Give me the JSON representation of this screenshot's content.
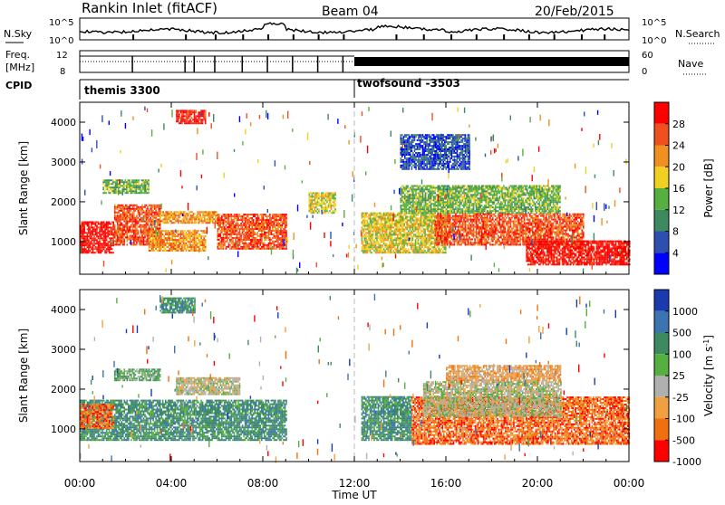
{
  "header": {
    "station": "Rankin Inlet (fitACF)",
    "beam": "Beam 04",
    "date": "20/Feb/2015"
  },
  "nsky_panel": {
    "left_label": "N.Sky",
    "right_label": "N.Search",
    "left_ticks": [
      "10^5",
      "10^0"
    ],
    "right_ticks": [
      "10^5",
      "10^0"
    ]
  },
  "freq_panel": {
    "left_label_1": "Freq.",
    "left_label_2": "[MHz]",
    "right_label": "Nave",
    "left_ticks": [
      "12",
      "8"
    ],
    "right_ticks": [
      "60",
      "0"
    ]
  },
  "cpid_panel": {
    "label": "CPID",
    "mode_1": "themis 3300",
    "mode_2": "twofsound -3503",
    "switch_time_hours": 12.0
  },
  "x_axis": {
    "title": "Time UT",
    "range_hours": [
      0,
      24
    ],
    "ticks": [
      {
        "hour": 0,
        "label": "00:00"
      },
      {
        "hour": 4,
        "label": "04:00"
      },
      {
        "hour": 8,
        "label": "08:00"
      },
      {
        "hour": 12,
        "label": "12:00"
      },
      {
        "hour": 16,
        "label": "16:00"
      },
      {
        "hour": 20,
        "label": "20:00"
      },
      {
        "hour": 24,
        "label": "00:00"
      }
    ]
  },
  "power_panel": {
    "ylabel": "Slant Range [km]",
    "yrange_km": [
      180,
      4500
    ],
    "yticks": [
      1000,
      2000,
      3000,
      4000
    ],
    "colorbar_label": "Power [dB]",
    "colorbar_ticks": [
      "4",
      "8",
      "12",
      "16",
      "20",
      "24",
      "28"
    ],
    "colors": [
      "#0000ff",
      "#2d50b0",
      "#3d8a60",
      "#55b040",
      "#f0d020",
      "#f09020",
      "#f05020",
      "#ff0000"
    ]
  },
  "velocity_panel": {
    "ylabel": "Slant Range [km]",
    "yrange_km": [
      180,
      4500
    ],
    "yticks": [
      1000,
      2000,
      3000,
      4000
    ],
    "colorbar_label": "Velocity [m s^-1]",
    "colorbar_ticks": [
      "1000",
      "500",
      "100",
      "25",
      "-25",
      "-100",
      "-500",
      "-1000"
    ],
    "colors": [
      "#1a3ab0",
      "#3b74b0",
      "#3d8a60",
      "#55b040",
      "#b0b0b0",
      "#f0a040",
      "#f07010",
      "#ff0000"
    ]
  },
  "chart_data": {
    "type": "heatmap",
    "title": "Rankin Inlet (fitACF)",
    "xlabel": "Time UT",
    "ylabel": "Slant Range [km]",
    "xlim_hours": [
      0,
      24
    ],
    "ylim_km": [
      180,
      4500
    ],
    "power_regions": [
      {
        "t0": 0.0,
        "t1": 1.5,
        "r0": 700,
        "r1": 1500,
        "level": 7
      },
      {
        "t0": 1.5,
        "t1": 3.5,
        "r0": 900,
        "r1": 1900,
        "level": 6
      },
      {
        "t0": 3.0,
        "t1": 5.5,
        "r0": 750,
        "r1": 1250,
        "level": 5
      },
      {
        "t0": 3.5,
        "t1": 6.0,
        "r0": 1450,
        "r1": 1750,
        "level": 5
      },
      {
        "t0": 4.2,
        "t1": 5.5,
        "r0": 3950,
        "r1": 4300,
        "level": 7
      },
      {
        "t0": 6.0,
        "t1": 9.0,
        "r0": 800,
        "r1": 1700,
        "level": 6
      },
      {
        "t0": 1.0,
        "t1": 3.0,
        "r0": 2200,
        "r1": 2550,
        "level": 3
      },
      {
        "t0": 10.0,
        "t1": 11.2,
        "r0": 1700,
        "r1": 2200,
        "level": 4
      },
      {
        "t0": 12.3,
        "t1": 16.0,
        "r0": 700,
        "r1": 1700,
        "level": 4
      },
      {
        "t0": 14.0,
        "t1": 21.0,
        "r0": 1700,
        "r1": 2400,
        "level": 3
      },
      {
        "t0": 15.5,
        "t1": 22.0,
        "r0": 900,
        "r1": 1700,
        "level": 6
      },
      {
        "t0": 19.5,
        "t1": 24.0,
        "r0": 400,
        "r1": 1000,
        "level": 7
      },
      {
        "t0": 14.0,
        "t1": 17.0,
        "r0": 2800,
        "r1": 3700,
        "level": 1
      }
    ],
    "velocity_regions": [
      {
        "t0": 0.0,
        "t1": 9.0,
        "r0": 700,
        "r1": 1700,
        "level": 2
      },
      {
        "t0": 0.0,
        "t1": 1.5,
        "r0": 1000,
        "r1": 1600,
        "level": 6
      },
      {
        "t0": 4.2,
        "t1": 7.0,
        "r0": 1850,
        "r1": 2300,
        "level": 4
      },
      {
        "t0": 1.5,
        "t1": 3.5,
        "r0": 2200,
        "r1": 2500,
        "level": 3
      },
      {
        "t0": 3.5,
        "t1": 5.0,
        "r0": 3900,
        "r1": 4300,
        "level": 2
      },
      {
        "t0": 12.3,
        "t1": 14.5,
        "r0": 700,
        "r1": 1800,
        "level": 2
      },
      {
        "t0": 14.5,
        "t1": 24.0,
        "r0": 600,
        "r1": 1800,
        "level": 6
      },
      {
        "t0": 15.0,
        "t1": 21.0,
        "r0": 1300,
        "r1": 2200,
        "level": 4
      },
      {
        "t0": 16.0,
        "t1": 21.0,
        "r0": 2200,
        "r1": 2600,
        "level": 5
      }
    ]
  }
}
